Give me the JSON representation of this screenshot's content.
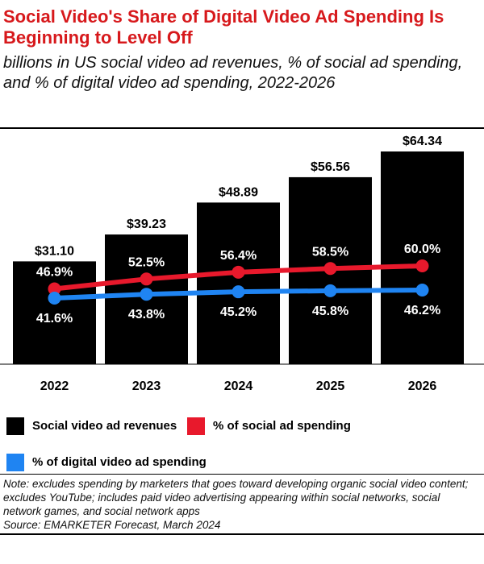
{
  "title": "Social Video's Share of Digital Video Ad Spending Is Beginning to Level Off",
  "subtitle": "billions in US social video ad revenues, % of social ad spending, and % of digital video ad spending, 2022-2026",
  "note": "Note: excludes spending by marketers that goes toward developing organic social video content; excludes YouTube; includes paid video advertising appearing within social networks, social network games, and social network apps",
  "source": "Source: EMARKETER Forecast, March 2024",
  "colors": {
    "bar": "#000000",
    "social_line": "#e8192c",
    "digital_line": "#1f84f2",
    "title": "#d7191c"
  },
  "legend": {
    "bars": "Social video ad revenues",
    "social": "% of social ad spending",
    "digital": "% of digital video ad spending"
  },
  "chart_data": {
    "type": "bar",
    "categories": [
      "2022",
      "2023",
      "2024",
      "2025",
      "2026"
    ],
    "series": [
      {
        "name": "Social video ad revenues",
        "type": "bar",
        "values": [
          31.1,
          39.23,
          48.89,
          56.56,
          64.34
        ],
        "labels": [
          "$31.10",
          "$39.23",
          "$48.89",
          "$56.56",
          "$64.34"
        ]
      },
      {
        "name": "% of social ad spending",
        "type": "line",
        "values": [
          46.9,
          52.5,
          56.4,
          58.5,
          60.0
        ],
        "labels": [
          "46.9%",
          "52.5%",
          "56.4%",
          "58.5%",
          "60.0%"
        ]
      },
      {
        "name": "% of digital video ad spending",
        "type": "line",
        "values": [
          41.6,
          43.8,
          45.2,
          45.8,
          46.2
        ],
        "labels": [
          "41.6%",
          "43.8%",
          "45.2%",
          "45.8%",
          "46.2%"
        ]
      }
    ],
    "legend_position": "bottom"
  }
}
